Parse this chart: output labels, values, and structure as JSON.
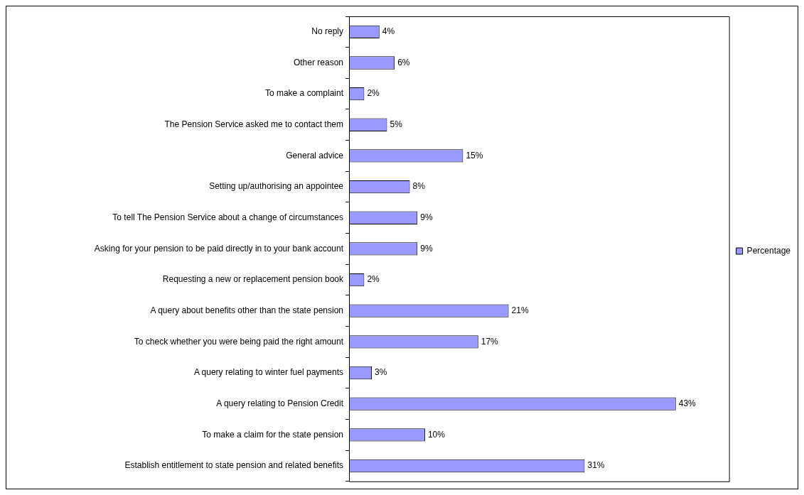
{
  "chart_data": {
    "type": "bar",
    "orientation": "horizontal",
    "categories": [
      "No reply",
      "Other reason",
      "To make a complaint",
      "The Pension Service asked me to contact them",
      "General advice",
      "Setting up/authorising an appointee",
      "To tell The Pension Service about a change of circumstances",
      "Asking for your pension to be paid directly in to your bank account",
      "Requesting a new or replacement pension book",
      "A query about benefits other than the state pension",
      "To check whether you were being paid the right amount",
      "A query relating to winter fuel payments",
      "A query relating to Pension Credit",
      "To make a claim for the state pension",
      "Establish entitlement to state pension and related benefits"
    ],
    "series": [
      {
        "name": "Percentage",
        "color": "#9999ff",
        "values": [
          4,
          6,
          2,
          5,
          15,
          8,
          9,
          9,
          2,
          21,
          17,
          3,
          43,
          10,
          31
        ],
        "value_labels": [
          "4%",
          "6%",
          "2%",
          "5%",
          "15%",
          "8%",
          "9%",
          "9%",
          "2%",
          "21%",
          "17%",
          "3%",
          "43%",
          "10%",
          "31%"
        ]
      }
    ],
    "tick_labels": "y",
    "grid": false,
    "legend": "right"
  }
}
